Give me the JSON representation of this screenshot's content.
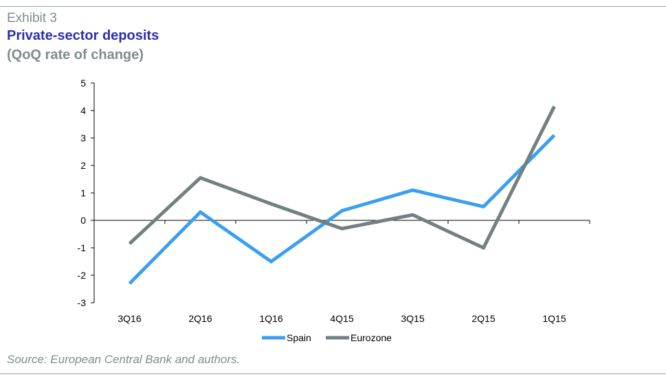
{
  "header": {
    "exhibit": "Exhibit 3",
    "title": "Private-sector deposits",
    "subtitle": "(QoQ rate of change)"
  },
  "footer": {
    "source": "Source: European Central Bank and authors."
  },
  "chart_data": {
    "type": "line",
    "title": "Private-sector deposits",
    "subtitle": "(QoQ rate of change)",
    "xlabel": "",
    "ylabel": "",
    "categories": [
      "3Q16",
      "2Q16",
      "1Q16",
      "4Q15",
      "3Q15",
      "2Q15",
      "1Q15"
    ],
    "ylim": [
      -3,
      5
    ],
    "yticks": [
      5,
      4,
      3,
      2,
      1,
      0,
      -1,
      -2,
      -3
    ],
    "grid": false,
    "legend_position": "bottom-center",
    "series": [
      {
        "name": "Spain",
        "color": "#3a9ff0",
        "values": [
          -2.3,
          0.3,
          -1.5,
          0.35,
          1.1,
          0.5,
          3.1
        ]
      },
      {
        "name": "Eurozone",
        "color": "#718080",
        "values": [
          -0.85,
          1.55,
          0.6,
          -0.3,
          0.2,
          -1.0,
          4.15
        ]
      }
    ]
  }
}
